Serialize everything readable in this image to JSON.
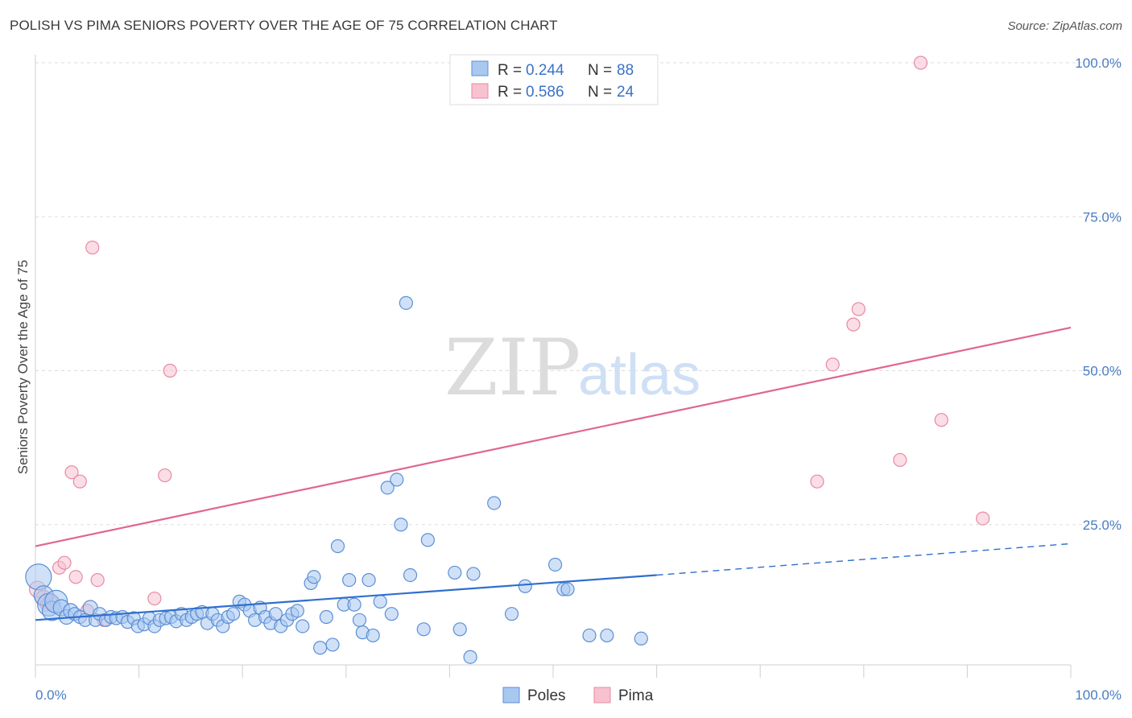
{
  "title": "POLISH VS PIMA SENIORS POVERTY OVER THE AGE OF 75 CORRELATION CHART",
  "source": "Source: ZipAtlas.com",
  "watermark": {
    "zip": "ZIP",
    "atlas": "atlas"
  },
  "colors": {
    "poles_fill": "#a9c8f0",
    "poles_stroke": "#5b8fd6",
    "poles_line": "#2f6fce",
    "pima_fill": "#f7c1cf",
    "pima_stroke": "#e78aa6",
    "pima_line": "#e06690",
    "tick_text": "#4a7cc4",
    "grid": "#dddddd"
  },
  "legend": {
    "rows": [
      {
        "r_label": "R = ",
        "r_value": "0.244",
        "n_label": "N = ",
        "n_value": "88"
      },
      {
        "r_label": "R = ",
        "r_value": "0.586",
        "n_label": "N = ",
        "n_value": "24"
      }
    ]
  },
  "bottom_legend": [
    "Poles",
    "Pima"
  ],
  "chart_data": {
    "type": "scatter",
    "title": "POLISH VS PIMA SENIORS POVERTY OVER THE AGE OF 75 CORRELATION CHART",
    "xlabel": "",
    "ylabel": "Seniors Poverty Over the Age of 75",
    "xlim": [
      0,
      100
    ],
    "ylim": [
      0,
      102
    ],
    "x_tick_labels": [
      "0.0%",
      "100.0%"
    ],
    "y_ticks": [
      25,
      50,
      75,
      100
    ],
    "y_tick_labels": [
      "25.0%",
      "50.0%",
      "75.0%",
      "100.0%"
    ],
    "grid": true,
    "legend_position": "top-center",
    "series": [
      {
        "name": "Poles",
        "r": 0.244,
        "n": 88,
        "trend": {
          "x0": 0,
          "y0": 9.5,
          "x1": 60,
          "y1": 16.8,
          "dashed_to_x": 100,
          "dashed_to_y": 21.9
        },
        "points": [
          [
            0.3,
            16.5,
            16
          ],
          [
            0.8,
            13.5,
            12
          ],
          [
            1.3,
            12.0,
            14
          ],
          [
            1.6,
            11.0,
            12
          ],
          [
            2.0,
            12.5,
            14
          ],
          [
            2.5,
            11.5,
            10
          ],
          [
            3.0,
            10.0,
            9
          ],
          [
            3.4,
            11.0,
            9
          ],
          [
            3.8,
            10.5,
            8
          ],
          [
            4.3,
            10.0,
            8
          ],
          [
            4.8,
            9.5,
            8
          ],
          [
            5.3,
            11.5,
            9
          ],
          [
            5.8,
            9.5,
            8
          ],
          [
            6.2,
            10.5,
            8
          ],
          [
            6.8,
            9.5,
            8
          ],
          [
            7.3,
            10.0,
            8
          ],
          [
            7.8,
            9.8,
            8
          ],
          [
            8.4,
            10.0,
            8
          ],
          [
            8.9,
            9.2,
            8
          ],
          [
            9.5,
            9.8,
            8
          ],
          [
            9.9,
            8.5,
            8
          ],
          [
            10.5,
            8.8,
            8
          ],
          [
            11.0,
            9.8,
            8
          ],
          [
            11.5,
            8.5,
            8
          ],
          [
            12.0,
            9.5,
            8
          ],
          [
            12.6,
            9.8,
            8
          ],
          [
            13.1,
            10.0,
            8
          ],
          [
            13.6,
            9.3,
            8
          ],
          [
            14.1,
            10.5,
            8
          ],
          [
            14.6,
            9.5,
            8
          ],
          [
            15.1,
            10.0,
            8
          ],
          [
            15.6,
            10.5,
            8
          ],
          [
            16.1,
            10.8,
            8
          ],
          [
            16.6,
            9.0,
            8
          ],
          [
            17.1,
            10.5,
            8
          ],
          [
            17.6,
            9.5,
            8
          ],
          [
            18.1,
            8.5,
            8
          ],
          [
            18.6,
            10.0,
            8
          ],
          [
            19.1,
            10.5,
            8
          ],
          [
            19.7,
            12.5,
            8
          ],
          [
            20.2,
            12.0,
            8
          ],
          [
            20.7,
            11.0,
            8
          ],
          [
            21.2,
            9.5,
            8
          ],
          [
            21.7,
            11.5,
            8
          ],
          [
            22.2,
            10.0,
            8
          ],
          [
            22.7,
            9.0,
            8
          ],
          [
            23.2,
            10.5,
            8
          ],
          [
            23.7,
            8.5,
            8
          ],
          [
            24.3,
            9.5,
            8
          ],
          [
            24.8,
            10.5,
            8
          ],
          [
            25.3,
            11.0,
            8
          ],
          [
            25.8,
            8.5,
            8
          ],
          [
            26.6,
            15.5,
            8
          ],
          [
            26.9,
            16.5,
            8
          ],
          [
            27.5,
            5.0,
            8
          ],
          [
            28.1,
            10.0,
            8
          ],
          [
            28.7,
            5.5,
            8
          ],
          [
            29.2,
            21.5,
            8
          ],
          [
            29.8,
            12.0,
            8
          ],
          [
            30.3,
            16.0,
            8
          ],
          [
            30.8,
            12.0,
            8
          ],
          [
            31.3,
            9.5,
            8
          ],
          [
            31.6,
            7.5,
            8
          ],
          [
            32.2,
            16.0,
            8
          ],
          [
            32.6,
            7.0,
            8
          ],
          [
            33.3,
            12.5,
            8
          ],
          [
            34.0,
            31.0,
            8
          ],
          [
            34.4,
            10.5,
            8
          ],
          [
            34.9,
            32.3,
            8
          ],
          [
            35.3,
            25.0,
            8
          ],
          [
            35.8,
            61.0,
            8
          ],
          [
            36.2,
            16.8,
            8
          ],
          [
            37.5,
            8.0,
            8
          ],
          [
            37.9,
            22.5,
            8
          ],
          [
            40.5,
            17.2,
            8
          ],
          [
            41.0,
            8.0,
            8
          ],
          [
            42.0,
            3.5,
            8
          ],
          [
            42.3,
            17.0,
            8
          ],
          [
            44.3,
            28.5,
            8
          ],
          [
            46.0,
            10.5,
            8
          ],
          [
            47.3,
            15.0,
            8
          ],
          [
            50.2,
            18.5,
            8
          ],
          [
            51.0,
            14.5,
            8
          ],
          [
            51.4,
            14.5,
            8
          ],
          [
            53.5,
            7.0,
            8
          ],
          [
            55.2,
            7.0,
            8
          ],
          [
            58.5,
            6.5,
            8
          ],
          [
            49.5,
            15.5,
            0
          ]
        ]
      },
      {
        "name": "Pima",
        "r": 0.586,
        "n": 24,
        "trend": {
          "x0": 0,
          "y0": 21.5,
          "x1": 100,
          "y1": 57.0
        },
        "points": [
          [
            0.2,
            14.5,
            10
          ],
          [
            0.8,
            13.0,
            10
          ],
          [
            1.4,
            12.5,
            9
          ],
          [
            2.3,
            18.0,
            8
          ],
          [
            2.8,
            18.8,
            8
          ],
          [
            3.5,
            33.5,
            8
          ],
          [
            3.9,
            16.5,
            8
          ],
          [
            4.3,
            32.0,
            8
          ],
          [
            5.0,
            11.0,
            8
          ],
          [
            5.5,
            70.0,
            8
          ],
          [
            6.0,
            16.0,
            8
          ],
          [
            6.6,
            9.5,
            8
          ],
          [
            11.5,
            13.0,
            8
          ],
          [
            12.5,
            33.0,
            8
          ],
          [
            13.0,
            50.0,
            8
          ],
          [
            75.5,
            32.0,
            8
          ],
          [
            77.0,
            51.0,
            8
          ],
          [
            79.0,
            57.5,
            8
          ],
          [
            79.5,
            60.0,
            8
          ],
          [
            83.5,
            35.5,
            8
          ],
          [
            85.5,
            100.0,
            8
          ],
          [
            87.5,
            42.0,
            8
          ],
          [
            91.5,
            26.0,
            8
          ],
          [
            1.1,
            12.0,
            8
          ]
        ]
      }
    ]
  }
}
